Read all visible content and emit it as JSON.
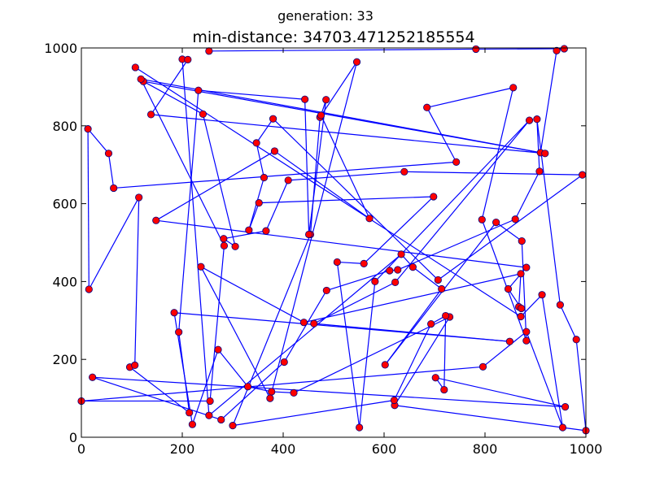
{
  "chart_data": {
    "type": "line",
    "suptitle": "generation: 33",
    "title": "min-distance: 34703.471252185554",
    "xlabel": "",
    "ylabel": "",
    "xlim": [
      0,
      1000
    ],
    "ylim": [
      0,
      1000
    ],
    "xticks": [
      0,
      200,
      400,
      600,
      800,
      1000
    ],
    "yticks": [
      0,
      200,
      400,
      600,
      800,
      1000
    ],
    "grid": false,
    "line_color": "#0000ff",
    "marker_color": "#ff0000",
    "marker_edge_color": "#000080",
    "route": [
      [
        253,
        992
      ],
      [
        782,
        997
      ],
      [
        957,
        998
      ],
      [
        942,
        993
      ],
      [
        910,
        731
      ],
      [
        123,
        914
      ],
      [
        241,
        830
      ],
      [
        305,
        490
      ],
      [
        282,
        510
      ],
      [
        366,
        530
      ],
      [
        410,
        660
      ],
      [
        640,
        682
      ],
      [
        993,
        674
      ],
      [
        707,
        404
      ],
      [
        380,
        818
      ],
      [
        347,
        756
      ],
      [
        362,
        667
      ],
      [
        332,
        532
      ],
      [
        352,
        602
      ],
      [
        698,
        618
      ],
      [
        560,
        446
      ],
      [
        507,
        450
      ],
      [
        551,
        25
      ],
      [
        582,
        400
      ],
      [
        888,
        814
      ],
      [
        622,
        398
      ],
      [
        461,
        292
      ],
      [
        849,
        246
      ],
      [
        184,
        320
      ],
      [
        220,
        33
      ],
      [
        271,
        225
      ],
      [
        330,
        130
      ],
      [
        377,
        117
      ],
      [
        421,
        114
      ],
      [
        730,
        309
      ],
      [
        621,
        82
      ],
      [
        1000,
        17
      ],
      [
        981,
        251
      ],
      [
        949,
        340
      ],
      [
        903,
        817
      ],
      [
        908,
        683
      ],
      [
        860,
        560
      ],
      [
        627,
        430
      ],
      [
        611,
        428
      ],
      [
        486,
        377
      ],
      [
        402,
        193
      ],
      [
        277,
        45
      ],
      [
        22,
        154
      ],
      [
        959,
        78
      ],
      [
        702,
        153
      ],
      [
        719,
        122
      ],
      [
        722,
        312
      ],
      [
        693,
        291
      ],
      [
        620,
        95
      ],
      [
        300,
        30
      ],
      [
        454,
        521
      ],
      [
        473,
        822
      ],
      [
        546,
        964
      ],
      [
        374,
        100
      ],
      [
        237,
        438
      ],
      [
        441,
        295
      ],
      [
        871,
        420
      ],
      [
        867,
        335
      ],
      [
        872,
        331
      ],
      [
        846,
        381
      ],
      [
        882,
        436
      ],
      [
        148,
        557
      ],
      [
        383,
        735
      ],
      [
        571,
        562
      ],
      [
        475,
        827
      ],
      [
        485,
        867
      ],
      [
        451,
        521
      ],
      [
        443,
        868
      ],
      [
        232,
        891
      ],
      [
        193,
        270
      ],
      [
        214,
        63
      ],
      [
        96,
        180
      ],
      [
        106,
        185
      ],
      [
        114,
        616
      ],
      [
        15,
        380
      ],
      [
        13,
        792
      ],
      [
        54,
        729
      ],
      [
        64,
        640
      ],
      [
        743,
        707
      ],
      [
        685,
        847
      ],
      [
        856,
        898
      ],
      [
        794,
        559
      ],
      [
        882,
        248
      ],
      [
        873,
        504
      ],
      [
        822,
        552
      ],
      [
        602,
        186
      ],
      [
        714,
        381
      ],
      [
        657,
        437
      ],
      [
        634,
        470
      ],
      [
        253,
        56
      ],
      [
        200,
        971
      ],
      [
        211,
        970
      ],
      [
        138,
        829
      ],
      [
        919,
        729
      ],
      [
        118,
        920
      ],
      [
        283,
        492
      ],
      [
        255,
        93
      ],
      [
        0,
        93
      ],
      [
        796,
        181
      ],
      [
        882,
        271
      ],
      [
        954,
        25
      ],
      [
        913,
        366
      ],
      [
        871,
        310
      ],
      [
        107,
        950
      ]
    ]
  }
}
